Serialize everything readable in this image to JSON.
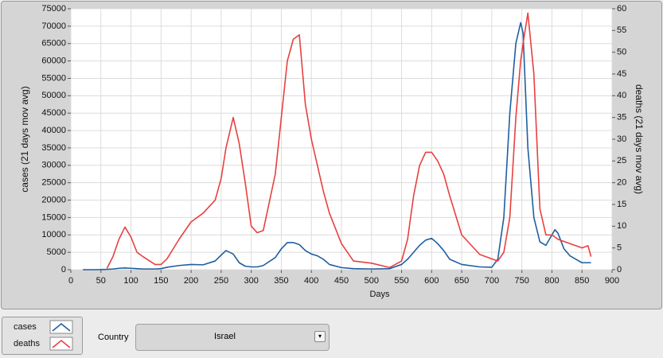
{
  "chart_data": {
    "type": "line",
    "xlabel": "Days",
    "ylabel": "cases  (21 days mov avg)",
    "y2label": "deaths  (21 days mov avg)",
    "x": [
      20,
      40,
      60,
      70,
      80,
      90,
      100,
      110,
      120,
      140,
      150,
      160,
      180,
      200,
      220,
      240,
      250,
      258,
      270,
      280,
      290,
      300,
      310,
      320,
      340,
      350,
      360,
      370,
      380,
      390,
      400,
      410,
      420,
      430,
      450,
      470,
      500,
      530,
      550,
      560,
      570,
      580,
      590,
      600,
      610,
      620,
      630,
      650,
      680,
      700,
      710,
      720,
      730,
      740,
      748,
      752,
      760,
      770,
      780,
      790,
      800,
      805,
      810,
      820,
      830,
      840,
      850,
      860,
      865
    ],
    "series": [
      {
        "name": "cases",
        "color": "#1f5fa0",
        "values": [
          0,
          0,
          100,
          200,
          400,
          500,
          400,
          300,
          200,
          200,
          300,
          700,
          1200,
          1500,
          1400,
          2500,
          4200,
          5500,
          4500,
          2000,
          1000,
          800,
          800,
          1200,
          3500,
          6000,
          7800,
          7800,
          7200,
          5500,
          4500,
          4000,
          3000,
          1500,
          600,
          300,
          200,
          300,
          1500,
          3000,
          5000,
          7000,
          8500,
          9000,
          7500,
          5500,
          3000,
          1500,
          800,
          700,
          3000,
          15000,
          45000,
          65000,
          71000,
          68000,
          35000,
          15000,
          8000,
          7000,
          10000,
          11500,
          10500,
          6000,
          4000,
          3000,
          2000,
          2000,
          2000
        ]
      },
      {
        "name": "deaths",
        "color": "#e84040",
        "axis": "y2",
        "values": [
          null,
          null,
          0.3,
          3,
          7,
          9.8,
          7.5,
          4,
          3,
          1.2,
          1.2,
          2.5,
          7,
          11,
          13,
          16,
          21,
          28,
          35,
          29,
          20,
          10,
          8.5,
          9,
          22,
          35,
          48,
          53,
          54,
          38,
          30,
          24,
          18,
          13,
          6,
          2,
          1.5,
          0.5,
          2,
          7,
          17,
          24,
          27,
          27,
          25,
          22,
          17,
          8,
          3.5,
          2.5,
          2,
          4,
          12,
          35,
          48,
          52,
          59,
          45,
          14,
          8,
          8,
          7.5,
          7,
          6.5,
          6,
          5.5,
          5,
          5.5,
          3
        ]
      }
    ],
    "xlim": [
      0,
      900
    ],
    "xticks": [
      0,
      50,
      100,
      150,
      200,
      250,
      300,
      350,
      400,
      450,
      500,
      550,
      600,
      650,
      700,
      750,
      800,
      850,
      900
    ],
    "ylim": [
      0,
      75000
    ],
    "yticks": [
      0,
      5000,
      10000,
      15000,
      20000,
      25000,
      30000,
      35000,
      40000,
      45000,
      50000,
      55000,
      60000,
      65000,
      70000,
      75000
    ],
    "y2lim": [
      0,
      60
    ],
    "y2ticks": [
      0,
      5,
      10,
      15,
      20,
      25,
      30,
      35,
      40,
      45,
      50,
      55,
      60
    ],
    "grid": true
  },
  "controls": {
    "label": "Country",
    "selected": "Israel"
  }
}
